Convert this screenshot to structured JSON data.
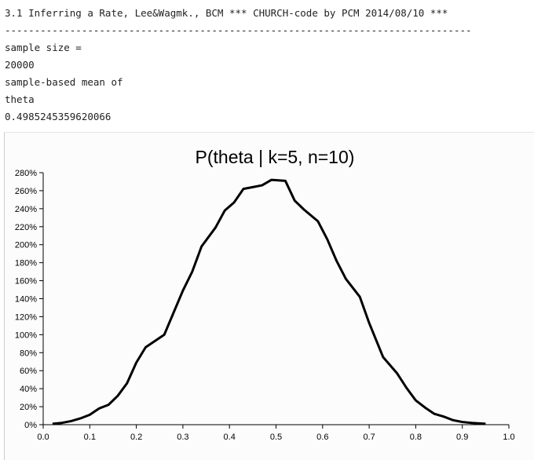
{
  "console": {
    "lines": [
      "3.1 Inferring a Rate, Lee&Wagmk., BCM *** CHURCH-code by PCM 2014/08/10 ***",
      "-------------------------------------------------------------------------------",
      "sample size =",
      "20000",
      "sample-based mean of",
      "theta",
      "0.4985245359620066"
    ]
  },
  "chart_data": {
    "type": "line",
    "title": "P(theta | k=5, n=10)",
    "color": "#000000",
    "x": [
      0.02,
      0.04,
      0.06,
      0.08,
      0.1,
      0.12,
      0.14,
      0.16,
      0.18,
      0.2,
      0.22,
      0.26,
      0.3,
      0.32,
      0.34,
      0.37,
      0.39,
      0.41,
      0.43,
      0.45,
      0.47,
      0.49,
      0.52,
      0.54,
      0.56,
      0.59,
      0.61,
      0.63,
      0.65,
      0.68,
      0.7,
      0.73,
      0.76,
      0.78,
      0.8,
      0.82,
      0.84,
      0.86,
      0.88,
      0.9,
      0.92,
      0.95
    ],
    "values": [
      1,
      2,
      4,
      7,
      11,
      18,
      22,
      32,
      46,
      69,
      86,
      100,
      149,
      170,
      198,
      219,
      238,
      247,
      262,
      264,
      266,
      272,
      271,
      249,
      239,
      226,
      206,
      182,
      162,
      142,
      113,
      75,
      57,
      41,
      27,
      19,
      12,
      9,
      5,
      3,
      2,
      1
    ],
    "xlim": [
      0,
      1.0
    ],
    "xticks": [
      {
        "value": 0,
        "label": "0.0"
      },
      0.1,
      0.2,
      0.3,
      0.4,
      0.5,
      0.6,
      0.7,
      0.8,
      0.9,
      {
        "value": 1,
        "label": "1.0"
      }
    ],
    "ylim": [
      0,
      280
    ],
    "yticks": [
      {
        "value": 0,
        "label": "0%"
      },
      {
        "value": 20,
        "label": "20%"
      },
      {
        "value": 40,
        "label": "40%"
      },
      {
        "value": 60,
        "label": "60%"
      },
      {
        "value": 80,
        "label": "80%"
      },
      {
        "value": 100,
        "label": "100%"
      },
      {
        "value": 120,
        "label": "120%"
      },
      {
        "value": 140,
        "label": "140%"
      },
      {
        "value": 160,
        "label": "160%"
      },
      {
        "value": 180,
        "label": "180%"
      },
      {
        "value": 200,
        "label": "200%"
      },
      {
        "value": 220,
        "label": "220%"
      },
      {
        "value": 240,
        "label": "240%"
      },
      {
        "value": 260,
        "label": "260%"
      },
      {
        "value": 280,
        "label": "280%"
      }
    ]
  }
}
